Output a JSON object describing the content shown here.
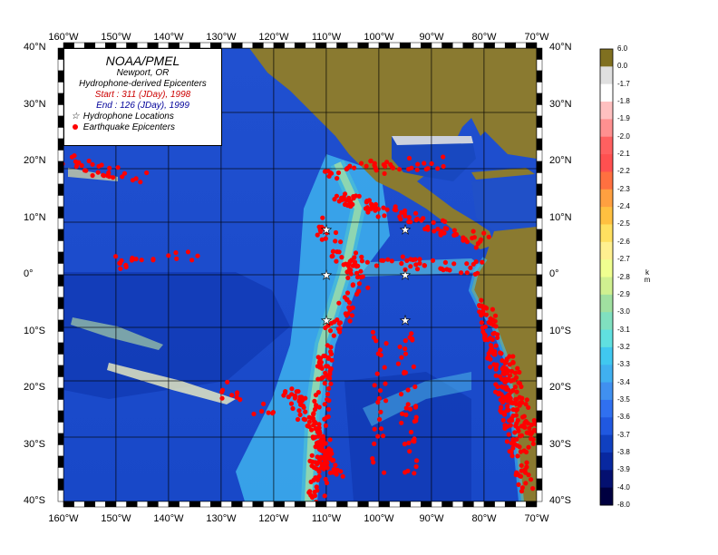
{
  "legend": {
    "org": "NOAA/PMEL",
    "location": "Newport, OR",
    "subtitle": "Hydrophone-derived Epicenters",
    "start": "Start : 311 (JDay), 1998",
    "end": "End : 126 (JDay), 1999",
    "hydrophone_label": "Hydrophone Locations",
    "epicenter_label": "Earthquake Epicenters"
  },
  "axes": {
    "lon_labels": [
      "160°W",
      "150°W",
      "140°W",
      "130°W",
      "120°W",
      "110°W",
      "100°W",
      "90°W",
      "80°W",
      "70°W"
    ],
    "lat_labels": [
      "40°N",
      "30°N",
      "20°N",
      "10°N",
      "0°",
      "10°S",
      "20°S",
      "30°S",
      "40°S"
    ]
  },
  "colorbar": {
    "unit": "km",
    "labels": [
      "6.0",
      "0.0",
      "-1.7",
      "-1.8",
      "-1.9",
      "-2.0",
      "-2.1",
      "-2.2",
      "-2.3",
      "-2.4",
      "-2.5",
      "-2.6",
      "-2.7",
      "-2.8",
      "-2.9",
      "-3.0",
      "-3.1",
      "-3.2",
      "-3.3",
      "-3.4",
      "-3.5",
      "-3.6",
      "-3.7",
      "-3.8",
      "-3.9",
      "-4.0",
      "-8.0"
    ],
    "colors": [
      "#807020",
      "#e0e0e0",
      "#ffffff",
      "#ffc0c0",
      "#ff9090",
      "#ff6060",
      "#ff5050",
      "#ff7040",
      "#ffa040",
      "#ffc040",
      "#ffe060",
      "#fff090",
      "#f0ff90",
      "#d0f090",
      "#a0e0a0",
      "#80e0c0",
      "#60e0e0",
      "#40c8f0",
      "#40b0f0",
      "#4090f0",
      "#3070f0",
      "#2058e0",
      "#1040c0",
      "#0828a0",
      "#041070",
      "#000040"
    ]
  },
  "hydrophones": [
    {
      "lon": -110,
      "lat": 8
    },
    {
      "lon": -95,
      "lat": 8
    },
    {
      "lon": -110,
      "lat": 0
    },
    {
      "lon": -95,
      "lat": 0
    },
    {
      "lon": -110,
      "lat": -8
    },
    {
      "lon": -95,
      "lat": -8
    }
  ]
}
